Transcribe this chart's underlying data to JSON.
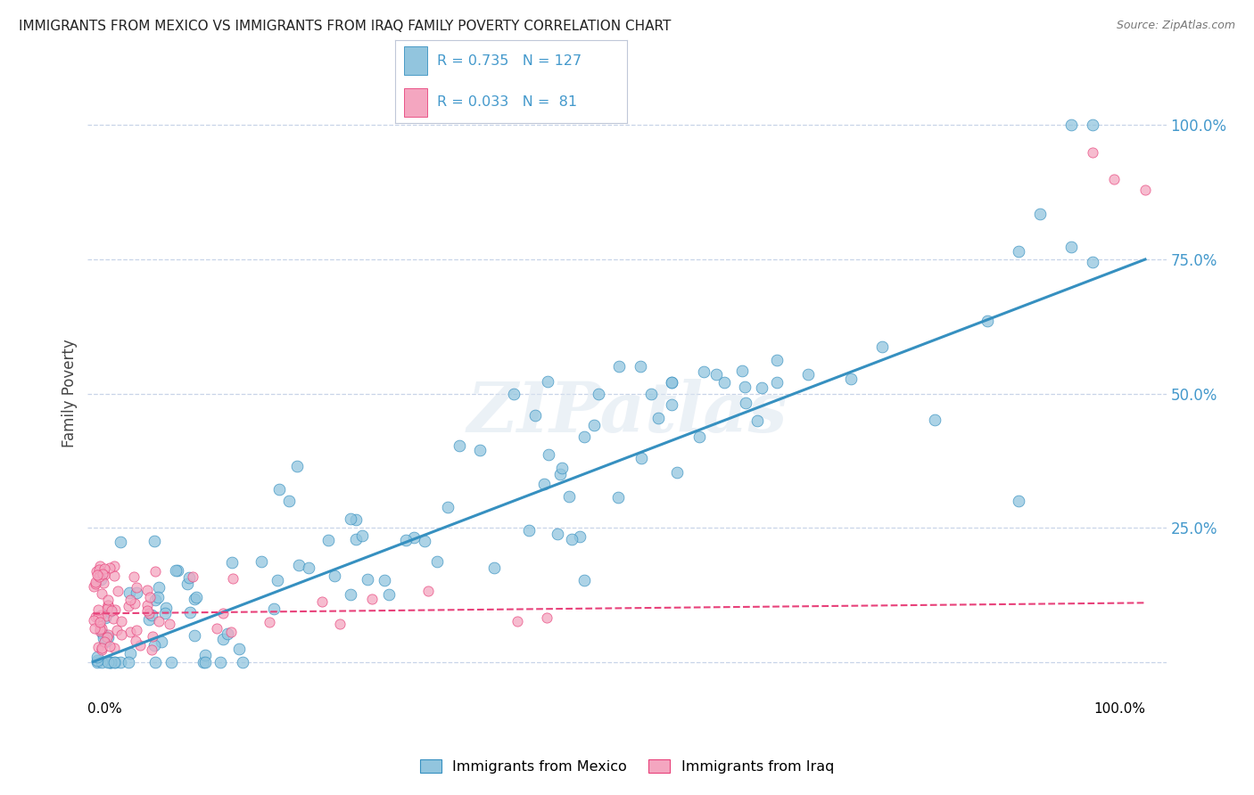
{
  "title": "IMMIGRANTS FROM MEXICO VS IMMIGRANTS FROM IRAQ FAMILY POVERTY CORRELATION CHART",
  "source": "Source: ZipAtlas.com",
  "ylabel": "Family Poverty",
  "y_tick_labels": [
    "25.0%",
    "50.0%",
    "75.0%",
    "100.0%"
  ],
  "y_tick_positions": [
    0.25,
    0.5,
    0.75,
    1.0
  ],
  "legend_mexico": "Immigrants from Mexico",
  "legend_iraq": "Immigrants from Iraq",
  "R_mexico": 0.735,
  "N_mexico": 127,
  "R_iraq": 0.033,
  "N_iraq": 81,
  "color_mexico": "#92c5de",
  "color_iraq": "#f4a6c0",
  "line_color_mexico": "#3690c0",
  "line_color_iraq": "#e8417a",
  "watermark_color": "#d0d8e8",
  "background_color": "#ffffff",
  "grid_color": "#c8d4e8",
  "title_color": "#222222",
  "source_color": "#777777",
  "right_tick_color": "#4499cc"
}
